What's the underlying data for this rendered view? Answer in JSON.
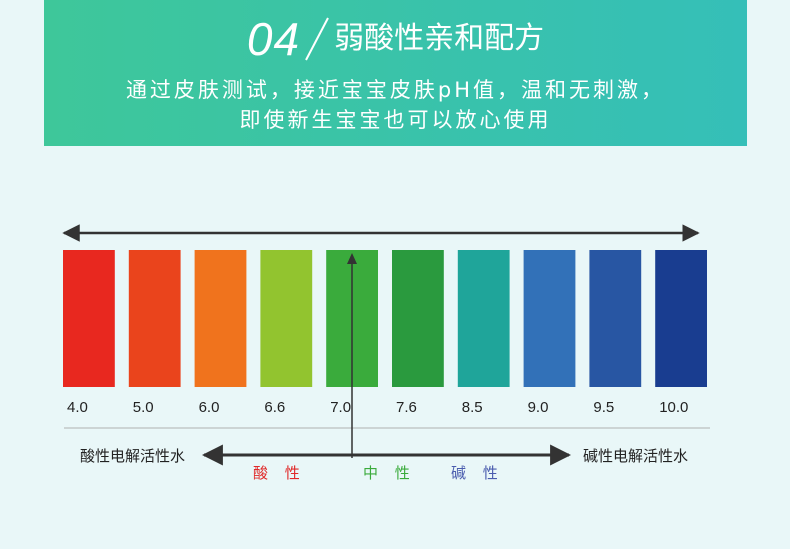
{
  "header": {
    "number": "04",
    "title": "弱酸性亲和配方",
    "line1": "通过皮肤测试，接近宝宝皮肤pH值，温和无刺激，",
    "line2": "即使新生宝宝也可以放心使用"
  },
  "scale": {
    "colors": [
      "#e8281f",
      "#ea441c",
      "#f0731d",
      "#92c42f",
      "#3aab3c",
      "#2a9a3e",
      "#1fa59a",
      "#3271b8",
      "#2856a3",
      "#193d90"
    ],
    "values": [
      "4.0",
      "5.0",
      "6.0",
      "6.6",
      "7.0",
      "7.6",
      "8.5",
      "9.0",
      "9.5",
      "10.0"
    ]
  },
  "axis": {
    "left_label": "酸性电解活性水",
    "right_label": "碱性电解活性水"
  },
  "categories": {
    "acid": {
      "label": "酸 性",
      "color": "#e02a2a"
    },
    "neutral": {
      "label": "中 性",
      "color": "#3aab3c"
    },
    "base": {
      "label": "碱 性",
      "color": "#4a5cae"
    }
  }
}
